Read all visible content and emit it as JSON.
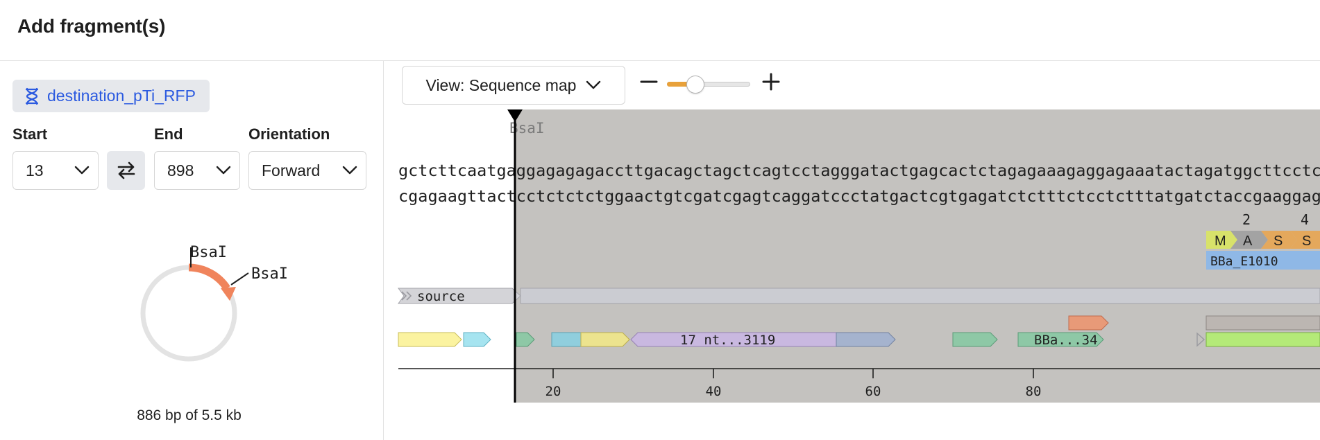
{
  "dialog": {
    "title": "Add fragment(s)"
  },
  "sequence": {
    "name": "destination_pTi_RFP",
    "icon": "dna-icon"
  },
  "fields": {
    "start_label": "Start",
    "start_value": "13",
    "end_label": "End",
    "end_value": "898",
    "orientation_label": "Orientation",
    "orientation_value": "Forward"
  },
  "mini_map": {
    "enzyme_labels": [
      "BsaI",
      "BsaI"
    ],
    "selection_color": "#f0845c",
    "bp_info": "886 bp of 5.5 kb"
  },
  "toolbar": {
    "view_label": "View: Sequence map",
    "zoom_level": 0.3
  },
  "viewer": {
    "cut_site_label": "BsaI",
    "top_strand": "gctcttcaatgaggagagagaccttgacagctagctcagtcctagggatactgagcactctagagaaagaggagaaatactagatggcttcctcc",
    "bottom_strand": "cgagaagttactcctctctctggaactgtcgatcgagtcaggatccctatgactcgtgagatctctttctcctctttatgatctaccgaaggagg",
    "aa_numbers": [
      "2",
      "4"
    ],
    "amino_acids": [
      "M",
      "A",
      "S",
      "S"
    ],
    "aa_colors": [
      "#d8e26a",
      "#a3a3a3",
      "#e4a85c",
      "#e4a85c"
    ],
    "cds_label": "BBa_E1010",
    "source_label": "source",
    "feature_labels": [
      "17 nt...3119",
      "BBa...34"
    ],
    "axis_ticks": [
      "20",
      "40",
      "60",
      "80"
    ],
    "colors": {
      "selection": "#c4c2bf",
      "cds": "#8fb8e6",
      "yellow": "#fbf3a0",
      "cyan": "#a6e4f0",
      "green": "#8ec8a6",
      "teal": "#90cedd",
      "khaki": "#ece38e",
      "lavender": "#c9b8e0",
      "slate": "#a5b3ce",
      "salmon": "#e89a78",
      "lime": "#b4ea78",
      "grey_feature": "#bcb6b2"
    }
  }
}
